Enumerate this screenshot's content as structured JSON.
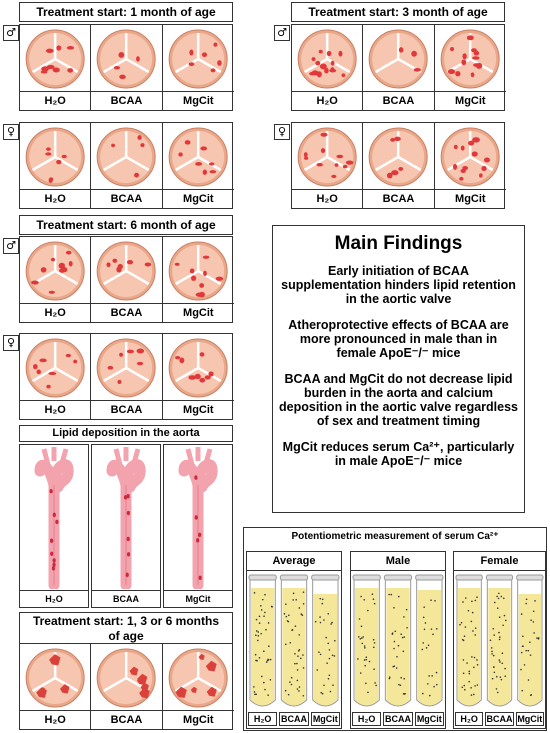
{
  "groups": {
    "month1": {
      "title": "Treatment start: 1 month of age"
    },
    "month3": {
      "title": "Treatment start: 3 month of age"
    },
    "month6": {
      "title": "Treatment start: 6 month of age"
    }
  },
  "sex": {
    "male": "♂",
    "female": "♀"
  },
  "treatments": [
    "H₂O",
    "BCAA",
    "MgCit"
  ],
  "aorta": {
    "title": "Lipid deposition in the aorta",
    "labels": [
      "H₂O",
      "BCAA",
      "MgCit"
    ]
  },
  "timing": {
    "title": "Treatment start: 1, 3 or 6 months of age"
  },
  "main_findings": {
    "title": "Main Findings",
    "items": [
      "Early initiation of BCAA supplementation hinders lipid retention in the aortic valve",
      "Atheroprotective effects of BCAA are more pronounced in male than in female ApoE⁻/⁻ mice",
      "BCAA and MgCit do not decrease lipid burden in the aorta and calcium deposition in the aortic valve regardless of sex and treatment timing",
      "MgCit reduces serum Ca²⁺, particularly in male ApoE⁻/⁻ mice"
    ]
  },
  "serum": {
    "title": "Potentiometric measurement of serum Ca²⁺",
    "panels": [
      "Average",
      "Male",
      "Female"
    ],
    "tube_labels": [
      "H₂O",
      "BCAA",
      "MgCit"
    ]
  },
  "colors": {
    "valve_bg": "#f7c6b0",
    "lesion": "#e0393b",
    "aorta": "#f3a3ae",
    "serum": "#f4e79a"
  }
}
